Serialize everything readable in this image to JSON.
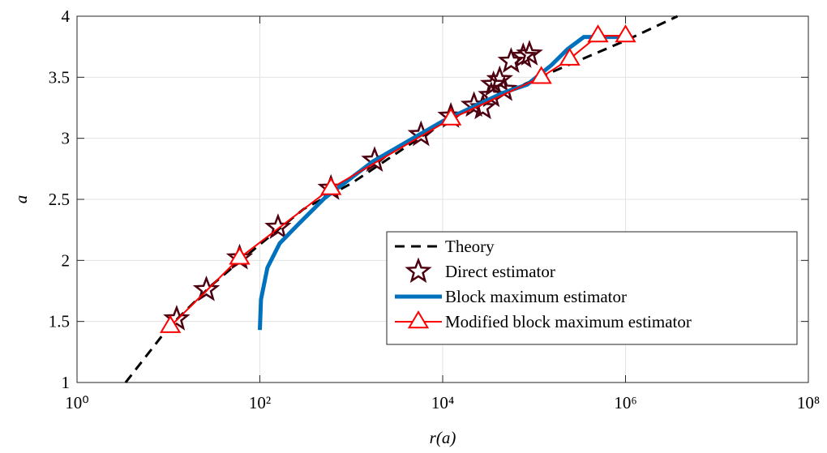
{
  "chart_data": {
    "type": "line",
    "xlabel": "r(a)",
    "ylabel": "a",
    "xscale": "log",
    "grid": true,
    "legend": "lower right",
    "xlim": [
      1,
      100000000
    ],
    "ylim": [
      1,
      4
    ],
    "xticks": [
      {
        "value": 1,
        "label": "10⁰"
      },
      {
        "value": 100,
        "label": "10²"
      },
      {
        "value": 10000,
        "label": "10⁴"
      },
      {
        "value": 1000000,
        "label": "10⁶"
      },
      {
        "value": 100000000,
        "label": "10⁸"
      }
    ],
    "yticks": [
      1,
      1.5,
      2,
      2.5,
      3,
      3.5,
      4
    ],
    "series": [
      {
        "name": "Theory",
        "color": "#000000",
        "linestyle": "dashed",
        "marker": "none",
        "x": [
          3.4,
          10,
          30,
          100,
          300,
          1000,
          10000,
          100000,
          1000000,
          3700000
        ],
        "values": [
          1,
          1.45,
          1.8,
          2.13,
          2.42,
          2.63,
          3.13,
          3.48,
          3.8,
          4
        ]
      },
      {
        "name": "Direct estimator",
        "color": "#4d0010",
        "linestyle": "none",
        "marker": "star",
        "x": [
          12.3,
          26,
          60,
          158,
          600,
          1800,
          5800,
          12300,
          22000,
          27500,
          34000,
          36000,
          42000,
          47000,
          56000,
          76000,
          89000
        ],
        "values": [
          1.52,
          1.76,
          2.02,
          2.27,
          2.59,
          2.82,
          3.03,
          3.18,
          3.27,
          3.25,
          3.35,
          3.44,
          3.48,
          3.4,
          3.63,
          3.67,
          3.69
        ]
      },
      {
        "name": "Block maximum estimator",
        "color": "#0072bd",
        "linestyle": "solid",
        "marker": "none",
        "x": [
          100,
          103,
          121,
          165,
          275,
          510,
          1720,
          10000,
          45000,
          84000,
          155000,
          232000,
          350000,
          1000000
        ],
        "values": [
          1.43,
          1.68,
          1.94,
          2.14,
          2.31,
          2.51,
          2.81,
          3.14,
          3.37,
          3.44,
          3.6,
          3.73,
          3.83,
          3.83
        ]
      },
      {
        "name": "Modified block maximum estimator",
        "color": "#ff0000",
        "linestyle": "solid",
        "marker": "triangle",
        "x": [
          10.5,
          60,
          600,
          12300,
          120000,
          245000,
          500000,
          1000000
        ],
        "values": [
          1.46,
          2.02,
          2.59,
          3.16,
          3.5,
          3.65,
          3.84,
          3.84
        ]
      }
    ]
  }
}
